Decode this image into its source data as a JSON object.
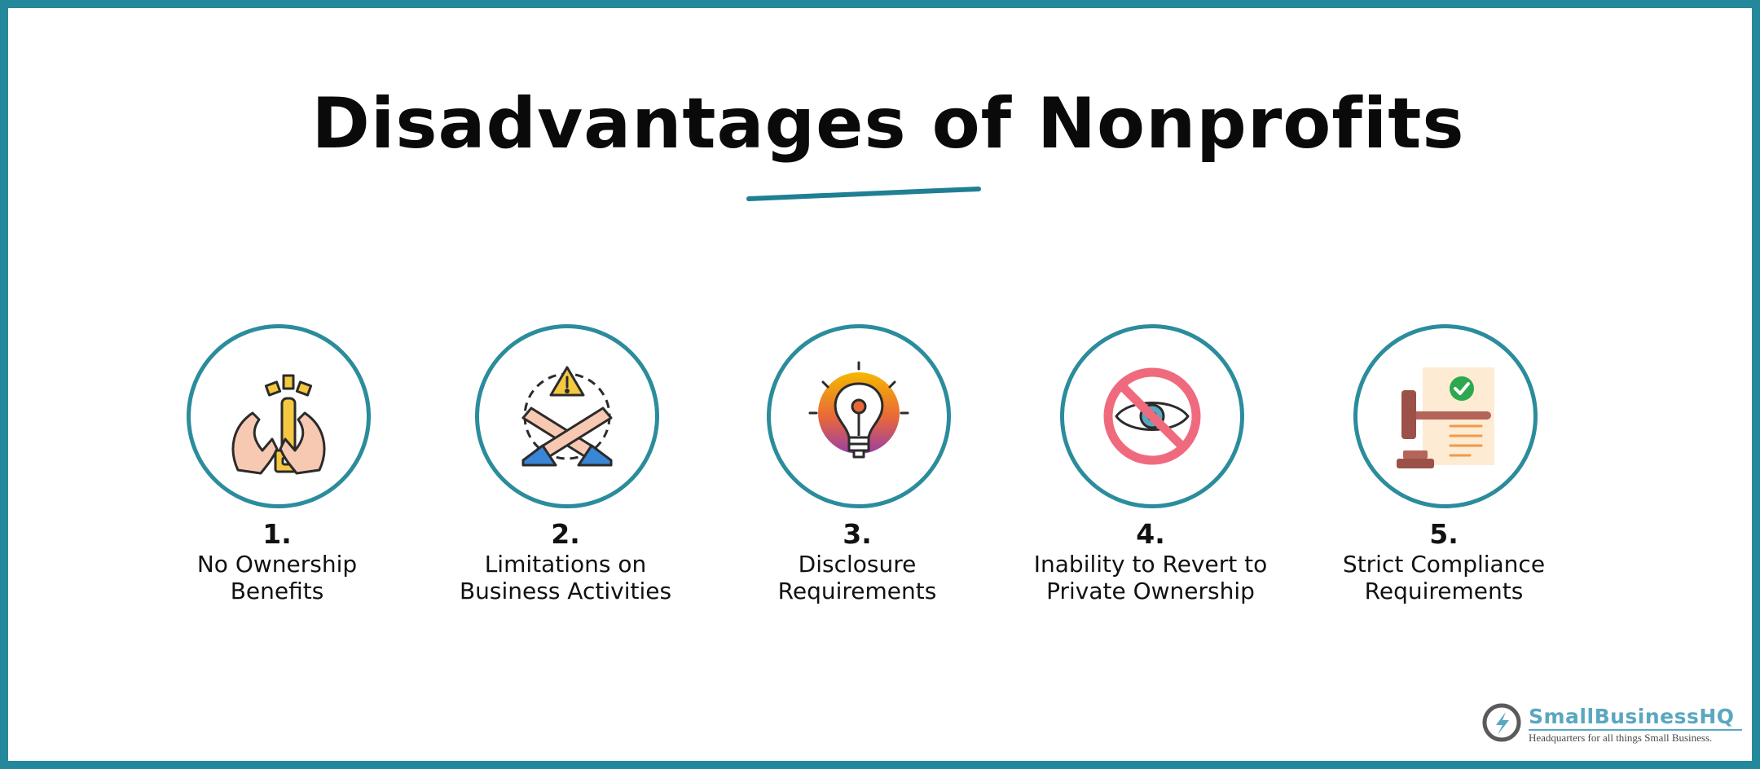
{
  "title": "Disadvantages of Nonprofits",
  "colors": {
    "frame": "#24889c",
    "circle_border": "#2b8c9c",
    "logo": "#5aa7c0"
  },
  "items": [
    {
      "number": "1.",
      "line1": "No Ownership",
      "line2": "Benefits",
      "icon": "hands-holding-key-icon"
    },
    {
      "number": "2.",
      "line1": "Limitations on",
      "line2": "Business Activities",
      "icon": "crossed-arms-warning-icon"
    },
    {
      "number": "3.",
      "line1": "Disclosure",
      "line2": "Requirements",
      "icon": "lightbulb-icon"
    },
    {
      "number": "4.",
      "line1": "Inability to Revert to",
      "line2": "Private Ownership",
      "icon": "prohibited-eye-icon"
    },
    {
      "number": "5.",
      "line1": "Strict Compliance",
      "line2": "Requirements",
      "icon": "gavel-document-check-icon"
    }
  ],
  "logo": {
    "name": "SmallBusinessHQ",
    "tagline": "Headquarters for all things Small Business."
  }
}
